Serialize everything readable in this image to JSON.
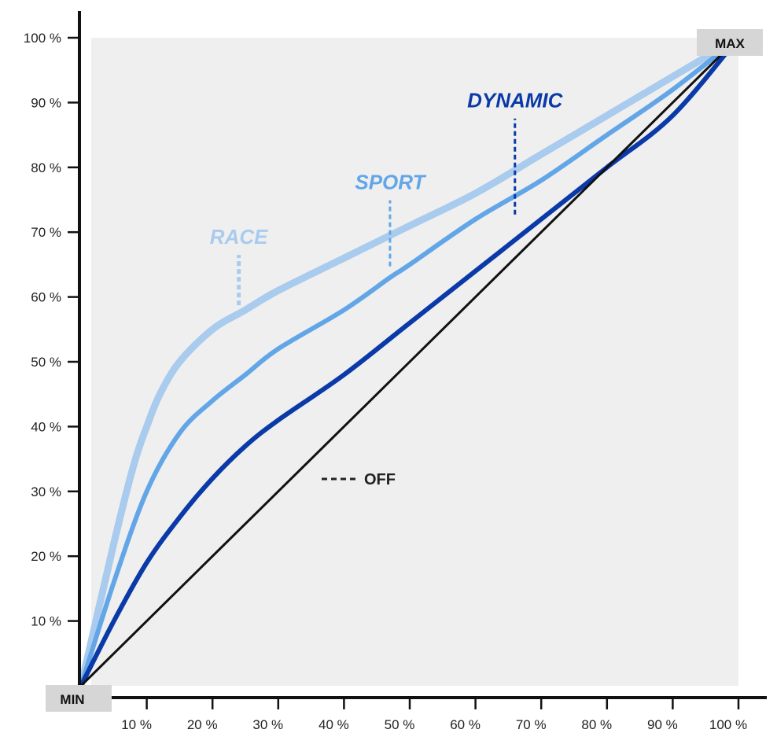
{
  "chart_data": {
    "type": "line",
    "x_ticks": [
      "10 %",
      "20 %",
      "30 %",
      "40 %",
      "50 %",
      "60 %",
      "70 %",
      "80 %",
      "90 %",
      "100 %"
    ],
    "y_ticks": [
      "100 %",
      "90 %",
      "80 %",
      "70 %",
      "60 %",
      "50 %",
      "40 %",
      "30 %",
      "20 %",
      "10 %"
    ],
    "xlim": [
      0,
      100
    ],
    "ylim": [
      0,
      100
    ],
    "min_label": "MIN",
    "max_label": "MAX",
    "off_label": "OFF",
    "series": [
      {
        "name": "OFF",
        "color": "#111111",
        "x": [
          0,
          100
        ],
        "y": [
          0,
          100
        ]
      },
      {
        "name": "DYNAMIC",
        "color": "#0a3aa8",
        "x": [
          0,
          5,
          10,
          15,
          20,
          25,
          30,
          40,
          50,
          60,
          65,
          70,
          80,
          90,
          100
        ],
        "y": [
          0,
          10,
          19,
          26,
          32,
          37,
          41,
          48,
          56,
          64,
          68,
          72,
          80,
          88,
          100
        ]
      },
      {
        "name": "SPORT",
        "color": "#62a6e8",
        "x": [
          0,
          5,
          10,
          15,
          20,
          25,
          30,
          40,
          47,
          50,
          60,
          70,
          80,
          90,
          100
        ],
        "y": [
          0,
          16,
          30,
          39,
          44,
          48,
          52,
          58,
          63,
          65,
          72,
          78,
          85,
          92,
          100
        ]
      },
      {
        "name": "RACE",
        "color": "#a9cbee",
        "x": [
          0,
          5,
          8,
          10,
          12,
          15,
          20,
          25,
          30,
          40,
          50,
          60,
          70,
          80,
          90,
          100
        ],
        "y": [
          0,
          22,
          34,
          40,
          45,
          50,
          55,
          58,
          61,
          66,
          71,
          76,
          82,
          88,
          94,
          100
        ]
      }
    ],
    "annotations": [
      {
        "text": "RACE",
        "series": "RACE",
        "x": 24,
        "y": 58,
        "color": "#a9cbee"
      },
      {
        "text": "SPORT",
        "series": "SPORT",
        "x": 47,
        "y": 64,
        "color": "#62a6e8"
      },
      {
        "text": "DYNAMIC",
        "series": "DYNAMIC",
        "x": 66,
        "y": 72,
        "color": "#0a3aa8"
      }
    ],
    "colors": {
      "plot_background": "#efefef",
      "axis": "#111111",
      "corner_box": "#d6d6d6"
    },
    "grid": false
  }
}
